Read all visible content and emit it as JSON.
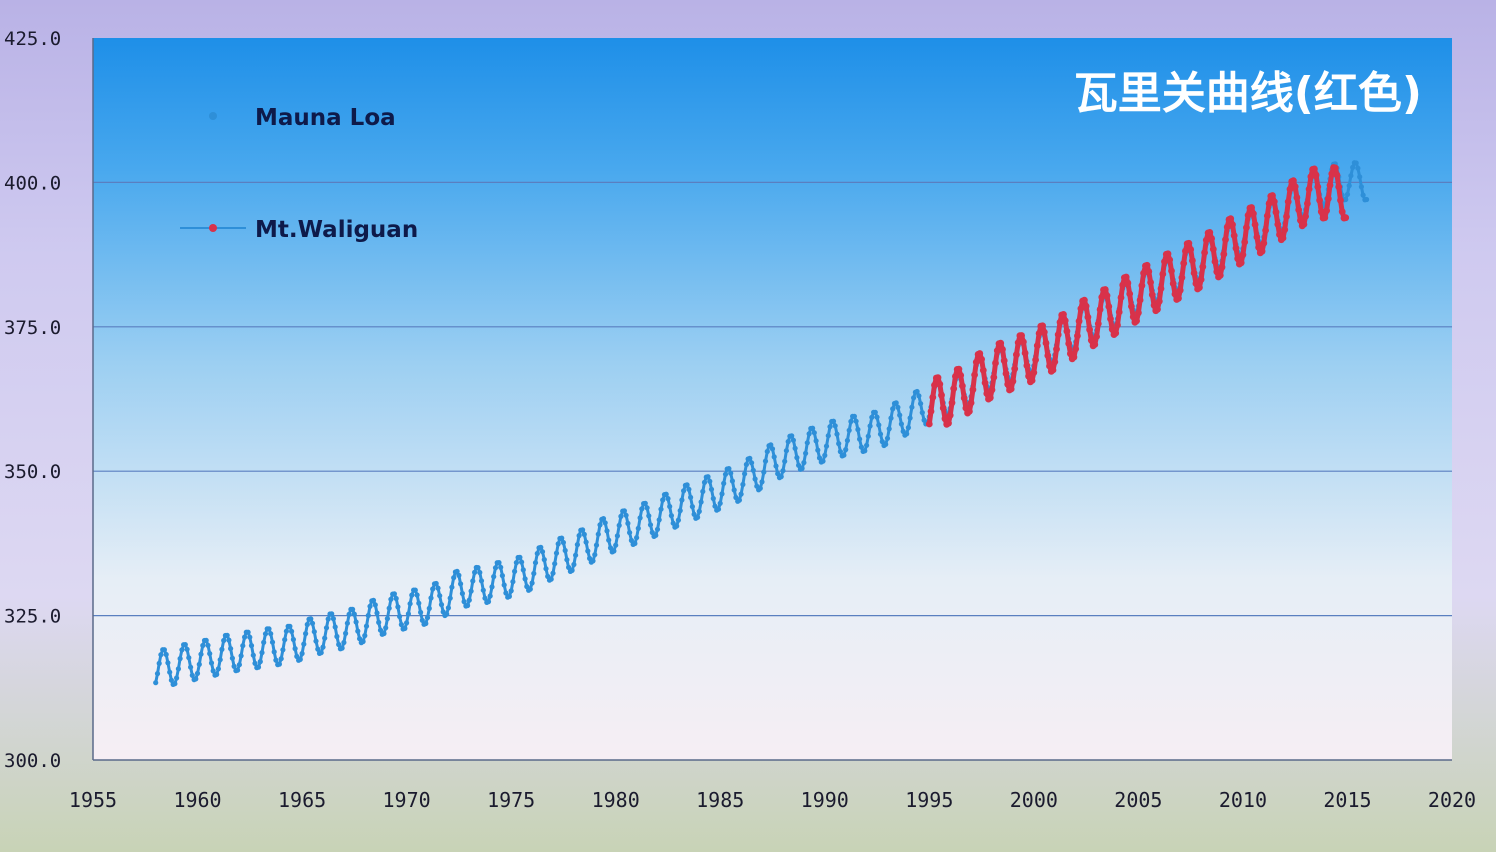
{
  "chart_data": {
    "type": "scatter",
    "annotation": "瓦里关曲线(红色)",
    "xlim": [
      1955,
      2020
    ],
    "ylim": [
      300,
      425
    ],
    "x_ticks": [
      "1955",
      "1960",
      "1965",
      "1970",
      "1975",
      "1980",
      "1985",
      "1990",
      "1995",
      "2000",
      "2005",
      "2010",
      "2015",
      "2020"
    ],
    "y_ticks": [
      "300.0",
      "325.0",
      "350.0",
      "375.0",
      "400.0",
      "425.0"
    ],
    "grid": "horizontal",
    "legend_position": "top-left",
    "series": [
      {
        "name": "Mauna Loa",
        "color": "#2e8fd8",
        "marker": "dot",
        "annual_mean": [
          [
            1958,
            315.3
          ],
          [
            1959,
            316.0
          ],
          [
            1960,
            316.9
          ],
          [
            1961,
            317.6
          ],
          [
            1962,
            318.5
          ],
          [
            1963,
            319.0
          ],
          [
            1964,
            319.6
          ],
          [
            1965,
            320.0
          ],
          [
            1966,
            321.4
          ],
          [
            1967,
            322.2
          ],
          [
            1968,
            323.0
          ],
          [
            1969,
            324.6
          ],
          [
            1970,
            325.7
          ],
          [
            1971,
            326.3
          ],
          [
            1972,
            327.5
          ],
          [
            1973,
            329.7
          ],
          [
            1974,
            330.2
          ],
          [
            1975,
            331.1
          ],
          [
            1976,
            332.0
          ],
          [
            1977,
            333.8
          ],
          [
            1978,
            335.4
          ],
          [
            1979,
            336.8
          ],
          [
            1980,
            338.8
          ],
          [
            1981,
            340.1
          ],
          [
            1982,
            341.4
          ],
          [
            1983,
            343.0
          ],
          [
            1984,
            344.6
          ],
          [
            1985,
            346.0
          ],
          [
            1986,
            347.4
          ],
          [
            1987,
            349.2
          ],
          [
            1988,
            351.6
          ],
          [
            1989,
            353.1
          ],
          [
            1990,
            354.4
          ],
          [
            1991,
            355.6
          ],
          [
            1992,
            356.4
          ],
          [
            1993,
            357.1
          ],
          [
            1994,
            358.8
          ],
          [
            1995,
            360.8
          ],
          [
            1996,
            362.6
          ],
          [
            1997,
            363.7
          ],
          [
            1998,
            366.7
          ],
          [
            1999,
            368.4
          ],
          [
            2000,
            369.7
          ],
          [
            2001,
            371.3
          ],
          [
            2002,
            373.5
          ],
          [
            2003,
            375.8
          ],
          [
            2004,
            377.5
          ],
          [
            2005,
            379.8
          ],
          [
            2006,
            381.9
          ],
          [
            2007,
            383.8
          ],
          [
            2008,
            385.6
          ],
          [
            2009,
            387.4
          ],
          [
            2010,
            389.9
          ],
          [
            2011,
            391.7
          ],
          [
            2012,
            393.9
          ],
          [
            2013,
            396.5
          ],
          [
            2014,
            398.6
          ],
          [
            2015,
            400.2
          ]
        ],
        "seasonal_amplitude": 3.3
      },
      {
        "name": "Mt.Waliguan",
        "color": "#d8324a",
        "marker": "line-dot",
        "annual_mean": [
          [
            1995,
            360.5
          ],
          [
            1996,
            362.0
          ],
          [
            1997,
            363.5
          ],
          [
            1998,
            366.3
          ],
          [
            1999,
            368.0
          ],
          [
            2000,
            369.3
          ],
          [
            2001,
            371.0
          ],
          [
            2002,
            373.0
          ],
          [
            2003,
            375.5
          ],
          [
            2004,
            377.3
          ],
          [
            2005,
            379.5
          ],
          [
            2006,
            381.5
          ],
          [
            2007,
            383.5
          ],
          [
            2008,
            385.3
          ],
          [
            2009,
            387.2
          ],
          [
            2010,
            389.6
          ],
          [
            2011,
            391.5
          ],
          [
            2012,
            393.6
          ],
          [
            2013,
            396.2
          ],
          [
            2014,
            398.2
          ]
        ],
        "seasonal_amplitude": 4.5
      }
    ]
  }
}
